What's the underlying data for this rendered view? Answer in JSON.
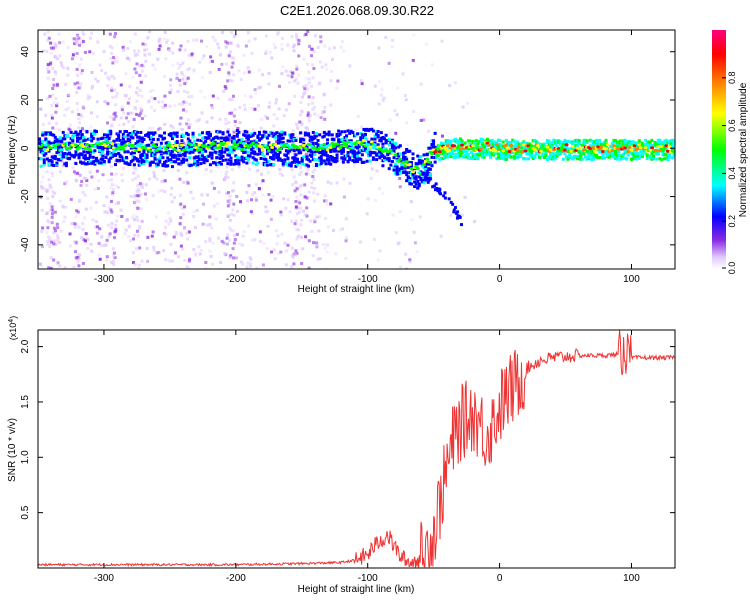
{
  "title": "C2E1.2026.068.09.30.R22",
  "chart_data": [
    {
      "type": "heatmap",
      "title": "C2E1.2026.068.09.30.R22",
      "xlabel": "Height of straight line (km)",
      "ylabel": "Frequency (Hz)",
      "xlim": [
        -350,
        133
      ],
      "ylim": [
        -50,
        49
      ],
      "xticks": [
        -300,
        -200,
        -100,
        0,
        100
      ],
      "xtick_labels": [
        "-300",
        "-200",
        "-100",
        "0",
        "100"
      ],
      "yticks": [
        -40,
        -20,
        0,
        20,
        40
      ],
      "ytick_labels": [
        "-40",
        "-20",
        "0",
        "20",
        "40"
      ],
      "colorbar": {
        "label": "Normalized spectral amplitude",
        "range": [
          0,
          1
        ],
        "ticks": [
          0.0,
          0.2,
          0.4,
          0.6,
          0.8
        ],
        "tick_labels": [
          "0.0",
          "0.2",
          "0.4",
          "0.6",
          "0.8"
        ],
        "colormap": [
          "#ffffff",
          "#e0c8ff",
          "#8a2be2",
          "#0000ff",
          "#00ffff",
          "#00ff00",
          "#ffff00",
          "#ff8000",
          "#ff0000",
          "#ff0080"
        ]
      },
      "main_trace": {
        "x": [
          -350,
          -300,
          -250,
          -200,
          -150,
          -120,
          -100,
          -90,
          -80,
          -70,
          -60,
          -55,
          -50,
          -40,
          -30,
          -20,
          -10,
          0,
          20,
          50,
          80,
          100,
          133
        ],
        "y": [
          0,
          1,
          0,
          1,
          0,
          1,
          2,
          0,
          -3,
          -7,
          -10,
          -6,
          0,
          0,
          1,
          0,
          1,
          0,
          0,
          0,
          0,
          0,
          0
        ]
      },
      "secondary_trace": {
        "x": [
          -60,
          -50,
          -40,
          -35,
          -30
        ],
        "y": [
          -10,
          -15,
          -20,
          -25,
          -30
        ]
      },
      "grid": false
    },
    {
      "type": "line",
      "title": "",
      "xlabel": "Height of straight line (km)",
      "ylabel": "SNR (10 * v/v)",
      "y_multiplier": "(x10^4)",
      "xlim": [
        -350,
        133
      ],
      "ylim": [
        0,
        2.15
      ],
      "xticks": [
        -300,
        -200,
        -100,
        0,
        100
      ],
      "xtick_labels": [
        "-300",
        "-200",
        "-100",
        "0",
        "100"
      ],
      "yticks": [
        0.5,
        1.0,
        1.5,
        2.0
      ],
      "ytick_labels": [
        "0.5",
        "1.0",
        "1.5",
        "2.0"
      ],
      "color": "#ee3333",
      "series": [
        {
          "x": [
            -350,
            -300,
            -250,
            -200,
            -150,
            -120,
            -110,
            -100,
            -95,
            -90,
            -85,
            -80,
            -75,
            -70,
            -65,
            -60,
            -55,
            -50,
            -45,
            -40,
            -35,
            -30,
            -25,
            -20,
            -15,
            -10,
            -5,
            0,
            5,
            10,
            15,
            20,
            30,
            40,
            60,
            80,
            90,
            95,
            100,
            110,
            133
          ],
          "values": [
            0.03,
            0.03,
            0.03,
            0.03,
            0.04,
            0.05,
            0.07,
            0.12,
            0.2,
            0.25,
            0.3,
            0.2,
            0.1,
            0.06,
            0.05,
            0.08,
            0.15,
            0.3,
            0.6,
            0.9,
            1.15,
            1.3,
            1.35,
            1.4,
            1.3,
            1.2,
            1.3,
            1.45,
            1.55,
            1.62,
            1.7,
            1.8,
            1.87,
            1.9,
            1.92,
            1.92,
            1.93,
            1.95,
            1.9,
            1.9,
            1.9
          ]
        }
      ],
      "grid": false
    }
  ]
}
